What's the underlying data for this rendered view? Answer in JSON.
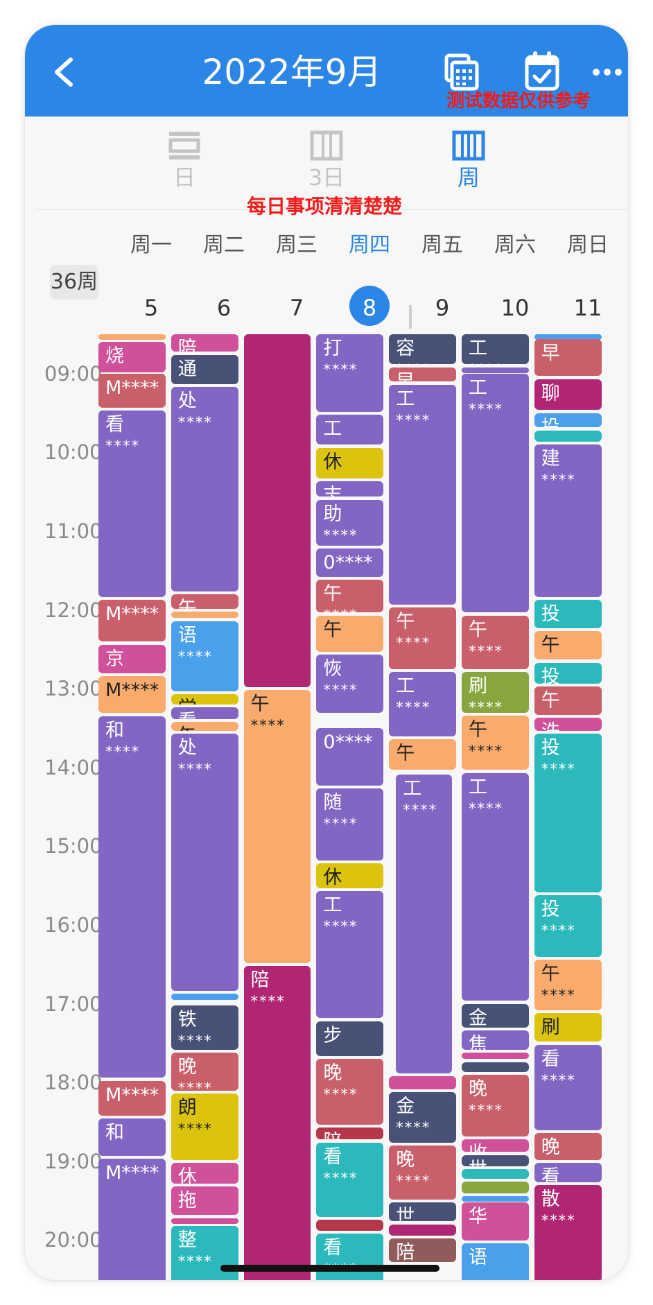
{
  "header": {
    "title": "2022年9月",
    "watermark": "测试数据仅供参考",
    "back_icon": "back-arrow-icon",
    "calendar_grid_icon": "calendar-grid-icon",
    "calendar_check_icon": "calendar-check-icon",
    "more_icon": "more-icon"
  },
  "view_tabs": [
    {
      "label": "日",
      "icon": "day-view-icon",
      "active": false
    },
    {
      "label": "3日",
      "icon": "three-day-view-icon",
      "active": false
    },
    {
      "label": "周",
      "icon": "week-view-icon",
      "active": true
    }
  ],
  "caption": "每日事项清清楚楚",
  "week": {
    "badge": "36周",
    "days": [
      {
        "name": "周一",
        "date": "5"
      },
      {
        "name": "周二",
        "date": "6"
      },
      {
        "name": "周三",
        "date": "7"
      },
      {
        "name": "周四",
        "date": "8",
        "today": true
      },
      {
        "name": "周五",
        "date": "9"
      },
      {
        "name": "周六",
        "date": "10"
      },
      {
        "name": "周日",
        "date": "11"
      }
    ]
  },
  "time_labels": [
    "09:00",
    "10:00",
    "11:00",
    "12:00",
    "13:00",
    "14:00",
    "15:00",
    "16:00",
    "17:00",
    "18:00",
    "19:00",
    "20:00"
  ],
  "colors": {
    "accent": "#2c86e5",
    "purple": "#8366c4",
    "rose": "#c95f6a",
    "pink": "#d0509a",
    "magenta": "#b02673",
    "navy": "#485276",
    "orange": "#f8ab6c",
    "yellow": "#dcc40e",
    "teal": "#2cb9bc",
    "blue": "#4aa0ea",
    "green": "#87a63f",
    "brown": "#8f5b5b",
    "red": "#b4384a"
  },
  "events": [
    {
      "day": 0,
      "start": 8.5,
      "end": 8.58,
      "title": "",
      "detail": "",
      "color": "orange"
    },
    {
      "day": 0,
      "start": 8.6,
      "end": 9.0,
      "title": "烧",
      "detail": "",
      "color": "pink"
    },
    {
      "day": 0,
      "start": 9.0,
      "end": 9.45,
      "title": "M****",
      "detail": "",
      "color": "rose"
    },
    {
      "day": 0,
      "start": 9.47,
      "end": 11.85,
      "title": "看",
      "detail": "****",
      "color": "purple"
    },
    {
      "day": 0,
      "start": 11.87,
      "end": 12.42,
      "title": "M****",
      "detail": "",
      "color": "rose"
    },
    {
      "day": 0,
      "start": 12.44,
      "end": 12.82,
      "title": "京",
      "detail": "",
      "color": "pink"
    },
    {
      "day": 0,
      "start": 12.84,
      "end": 13.32,
      "title": "M****",
      "detail": "",
      "color": "orange"
    },
    {
      "day": 0,
      "start": 13.35,
      "end": 17.95,
      "title": "和",
      "detail": "****",
      "color": "purple"
    },
    {
      "day": 0,
      "start": 17.98,
      "end": 18.44,
      "title": "M****",
      "detail": "",
      "color": "rose"
    },
    {
      "day": 0,
      "start": 18.46,
      "end": 18.95,
      "title": "和",
      "detail": "",
      "color": "purple"
    },
    {
      "day": 0,
      "start": 18.97,
      "end": 20.6,
      "title": "M****",
      "detail": "",
      "color": "purple"
    },
    {
      "day": 1,
      "start": 8.5,
      "end": 8.74,
      "title": "陪",
      "detail": "",
      "color": "pink"
    },
    {
      "day": 1,
      "start": 8.76,
      "end": 9.15,
      "title": "通",
      "detail": "",
      "color": "navy"
    },
    {
      "day": 1,
      "start": 9.17,
      "end": 11.78,
      "title": "处",
      "detail": "****",
      "color": "purple"
    },
    {
      "day": 1,
      "start": 11.8,
      "end": 12.0,
      "title": "午",
      "detail": "",
      "color": "rose"
    },
    {
      "day": 1,
      "start": 12.02,
      "end": 12.12,
      "title": "",
      "detail": "",
      "color": "orange"
    },
    {
      "day": 1,
      "start": 12.14,
      "end": 13.05,
      "title": "语",
      "detail": "****",
      "color": "blue"
    },
    {
      "day": 1,
      "start": 13.07,
      "end": 13.22,
      "title": "学",
      "detail": "",
      "color": "yellow"
    },
    {
      "day": 1,
      "start": 13.24,
      "end": 13.4,
      "title": "看",
      "detail": "",
      "color": "purple"
    },
    {
      "day": 1,
      "start": 13.42,
      "end": 13.55,
      "title": "午",
      "detail": "",
      "color": "orange"
    },
    {
      "day": 1,
      "start": 13.57,
      "end": 16.85,
      "title": "处",
      "detail": "****",
      "color": "purple"
    },
    {
      "day": 1,
      "start": 16.87,
      "end": 16.97,
      "title": "",
      "detail": "",
      "color": "blue"
    },
    {
      "day": 1,
      "start": 17.02,
      "end": 17.6,
      "title": "铁",
      "detail": "****",
      "color": "navy"
    },
    {
      "day": 1,
      "start": 17.62,
      "end": 18.12,
      "title": "晚",
      "detail": "****",
      "color": "rose"
    },
    {
      "day": 1,
      "start": 18.14,
      "end": 19.0,
      "title": "朗",
      "detail": "****",
      "color": "yellow"
    },
    {
      "day": 1,
      "start": 19.02,
      "end": 19.3,
      "title": "休",
      "detail": "",
      "color": "pink"
    },
    {
      "day": 1,
      "start": 19.32,
      "end": 19.7,
      "title": "拖",
      "detail": "",
      "color": "pink"
    },
    {
      "day": 1,
      "start": 19.72,
      "end": 19.8,
      "title": "",
      "detail": "",
      "color": "pink"
    },
    {
      "day": 1,
      "start": 19.82,
      "end": 20.6,
      "title": "整",
      "detail": "****",
      "color": "teal"
    },
    {
      "day": 2,
      "start": 8.5,
      "end": 13.0,
      "title": "",
      "detail": "",
      "color": "magenta"
    },
    {
      "day": 2,
      "start": 13.02,
      "end": 16.5,
      "title": "午",
      "detail": "****",
      "color": "orange"
    },
    {
      "day": 2,
      "start": 16.52,
      "end": 20.6,
      "title": "陪",
      "detail": "****",
      "color": "magenta"
    },
    {
      "day": 3,
      "start": 8.5,
      "end": 9.5,
      "title": "打",
      "detail": "****",
      "color": "purple"
    },
    {
      "day": 3,
      "start": 9.52,
      "end": 9.92,
      "title": "工",
      "detail": "",
      "color": "purple"
    },
    {
      "day": 3,
      "start": 9.94,
      "end": 10.35,
      "title": "休",
      "detail": "",
      "color": "yellow"
    },
    {
      "day": 3,
      "start": 10.37,
      "end": 10.58,
      "title": "志",
      "detail": "",
      "color": "purple"
    },
    {
      "day": 3,
      "start": 10.6,
      "end": 11.2,
      "title": "助",
      "detail": "****",
      "color": "purple"
    },
    {
      "day": 3,
      "start": 11.22,
      "end": 11.6,
      "title": "0****",
      "detail": "",
      "color": "purple"
    },
    {
      "day": 3,
      "start": 11.62,
      "end": 12.05,
      "title": "午",
      "detail": "****",
      "color": "rose"
    },
    {
      "day": 3,
      "start": 12.07,
      "end": 12.55,
      "title": "午",
      "detail": "",
      "color": "orange"
    },
    {
      "day": 3,
      "start": 12.57,
      "end": 13.32,
      "title": "恢",
      "detail": "****",
      "color": "purple"
    },
    {
      "day": 3,
      "start": 13.5,
      "end": 14.25,
      "title": "0****",
      "detail": "",
      "color": "purple"
    },
    {
      "day": 3,
      "start": 14.27,
      "end": 15.2,
      "title": "随",
      "detail": "****",
      "color": "purple"
    },
    {
      "day": 3,
      "start": 15.22,
      "end": 15.55,
      "title": "休",
      "detail": "",
      "color": "yellow"
    },
    {
      "day": 3,
      "start": 15.57,
      "end": 17.2,
      "title": "工",
      "detail": "****",
      "color": "purple"
    },
    {
      "day": 3,
      "start": 17.22,
      "end": 17.68,
      "title": "步",
      "detail": "",
      "color": "navy"
    },
    {
      "day": 3,
      "start": 17.7,
      "end": 18.55,
      "title": "晚",
      "detail": "****",
      "color": "rose"
    },
    {
      "day": 3,
      "start": 18.57,
      "end": 18.74,
      "title": "陪",
      "detail": "",
      "color": "red"
    },
    {
      "day": 3,
      "start": 18.76,
      "end": 19.72,
      "title": "看",
      "detail": "****",
      "color": "teal"
    },
    {
      "day": 3,
      "start": 19.74,
      "end": 19.9,
      "title": "",
      "detail": "",
      "color": "red"
    },
    {
      "day": 3,
      "start": 19.92,
      "end": 20.6,
      "title": "看",
      "detail": "****",
      "color": "teal"
    },
    {
      "day": 4,
      "start": 8.5,
      "end": 8.9,
      "title": "容",
      "detail": "****",
      "color": "navy"
    },
    {
      "day": 4,
      "start": 8.92,
      "end": 9.12,
      "title": "早",
      "detail": "",
      "color": "rose"
    },
    {
      "day": 4,
      "start": 9.14,
      "end": 11.95,
      "title": "工",
      "detail": "****",
      "color": "purple"
    },
    {
      "day": 4,
      "start": 11.97,
      "end": 12.77,
      "title": "午",
      "detail": "****",
      "color": "rose"
    },
    {
      "day": 4,
      "start": 12.79,
      "end": 13.62,
      "title": "工",
      "detail": "****",
      "color": "purple"
    },
    {
      "day": 4,
      "start": 13.64,
      "end": 14.05,
      "title": "午",
      "detail": "",
      "color": "orange"
    },
    {
      "day": 4,
      "start": 14.09,
      "end": 17.9,
      "title": "工",
      "detail": "****",
      "color": "purple",
      "inset": true
    },
    {
      "day": 4,
      "start": 17.92,
      "end": 18.1,
      "title": "",
      "detail": "",
      "color": "pink"
    },
    {
      "day": 4,
      "start": 18.12,
      "end": 18.78,
      "title": "金",
      "detail": "****",
      "color": "navy"
    },
    {
      "day": 4,
      "start": 18.8,
      "end": 19.5,
      "title": "晚",
      "detail": "****",
      "color": "rose"
    },
    {
      "day": 4,
      "start": 19.52,
      "end": 19.78,
      "title": "世",
      "detail": "",
      "color": "navy"
    },
    {
      "day": 4,
      "start": 19.8,
      "end": 19.96,
      "title": "",
      "detail": "",
      "color": "magenta"
    },
    {
      "day": 4,
      "start": 19.98,
      "end": 20.3,
      "title": "陪",
      "detail": "",
      "color": "brown"
    },
    {
      "day": 5,
      "start": 8.5,
      "end": 8.9,
      "title": "工",
      "detail": "****",
      "color": "navy"
    },
    {
      "day": 5,
      "start": 8.92,
      "end": 8.98,
      "title": "",
      "detail": "",
      "color": "purple"
    },
    {
      "day": 5,
      "start": 9.0,
      "end": 12.05,
      "title": "工",
      "detail": "****",
      "color": "purple"
    },
    {
      "day": 5,
      "start": 12.07,
      "end": 12.77,
      "title": "午",
      "detail": "****",
      "color": "rose"
    },
    {
      "day": 5,
      "start": 12.79,
      "end": 13.32,
      "title": "刷",
      "detail": "****",
      "color": "green"
    },
    {
      "day": 5,
      "start": 13.34,
      "end": 14.05,
      "title": "午",
      "detail": "****",
      "color": "orange"
    },
    {
      "day": 5,
      "start": 14.07,
      "end": 16.98,
      "title": "工",
      "detail": "****",
      "color": "purple"
    },
    {
      "day": 5,
      "start": 17.0,
      "end": 17.32,
      "title": "金",
      "detail": "",
      "color": "navy"
    },
    {
      "day": 5,
      "start": 17.34,
      "end": 17.6,
      "title": "焦",
      "detail": "",
      "color": "purple"
    },
    {
      "day": 5,
      "start": 17.62,
      "end": 17.72,
      "title": "",
      "detail": "",
      "color": "pink"
    },
    {
      "day": 5,
      "start": 17.74,
      "end": 17.88,
      "title": "",
      "detail": "",
      "color": "navy"
    },
    {
      "day": 5,
      "start": 17.9,
      "end": 18.7,
      "title": "晚",
      "detail": "****",
      "color": "rose"
    },
    {
      "day": 5,
      "start": 18.72,
      "end": 18.9,
      "title": "收",
      "detail": "",
      "color": "pink"
    },
    {
      "day": 5,
      "start": 18.92,
      "end": 19.08,
      "title": "世",
      "detail": "",
      "color": "navy"
    },
    {
      "day": 5,
      "start": 19.1,
      "end": 19.24,
      "title": "",
      "detail": "",
      "color": "teal"
    },
    {
      "day": 5,
      "start": 19.26,
      "end": 19.42,
      "title": "",
      "detail": "",
      "color": "green"
    },
    {
      "day": 5,
      "start": 19.44,
      "end": 19.5,
      "title": "",
      "detail": "",
      "color": "blue"
    },
    {
      "day": 5,
      "start": 19.52,
      "end": 20.02,
      "title": "华",
      "detail": "",
      "color": "pink"
    },
    {
      "day": 5,
      "start": 20.04,
      "end": 20.6,
      "title": "语",
      "detail": "",
      "color": "blue"
    },
    {
      "day": 6,
      "start": 8.5,
      "end": 8.54,
      "title": "",
      "detail": "",
      "color": "blue"
    },
    {
      "day": 6,
      "start": 8.56,
      "end": 9.05,
      "title": "早",
      "detail": "",
      "color": "rose"
    },
    {
      "day": 6,
      "start": 9.07,
      "end": 9.48,
      "title": "聊",
      "detail": "",
      "color": "magenta"
    },
    {
      "day": 6,
      "start": 9.5,
      "end": 9.7,
      "title": "投",
      "detail": "",
      "color": "blue"
    },
    {
      "day": 6,
      "start": 9.72,
      "end": 9.88,
      "title": "",
      "detail": "",
      "color": "teal"
    },
    {
      "day": 6,
      "start": 9.9,
      "end": 11.85,
      "title": "建",
      "detail": "****",
      "color": "purple"
    },
    {
      "day": 6,
      "start": 11.87,
      "end": 12.25,
      "title": "投",
      "detail": "",
      "color": "teal"
    },
    {
      "day": 6,
      "start": 12.27,
      "end": 12.65,
      "title": "午",
      "detail": "",
      "color": "orange"
    },
    {
      "day": 6,
      "start": 12.67,
      "end": 12.95,
      "title": "投",
      "detail": "",
      "color": "teal"
    },
    {
      "day": 6,
      "start": 12.97,
      "end": 13.35,
      "title": "午",
      "detail": "",
      "color": "rose"
    },
    {
      "day": 6,
      "start": 13.37,
      "end": 13.55,
      "title": "洗",
      "detail": "",
      "color": "pink"
    },
    {
      "day": 6,
      "start": 13.57,
      "end": 15.6,
      "title": "投",
      "detail": "****",
      "color": "teal"
    },
    {
      "day": 6,
      "start": 15.62,
      "end": 16.42,
      "title": "投",
      "detail": "****",
      "color": "teal"
    },
    {
      "day": 6,
      "start": 16.44,
      "end": 17.1,
      "title": "午",
      "detail": "****",
      "color": "orange"
    },
    {
      "day": 6,
      "start": 17.12,
      "end": 17.5,
      "title": "刷",
      "detail": "",
      "color": "yellow"
    },
    {
      "day": 6,
      "start": 17.52,
      "end": 18.62,
      "title": "看",
      "detail": "****",
      "color": "purple"
    },
    {
      "day": 6,
      "start": 18.64,
      "end": 19.0,
      "title": "晚",
      "detail": "",
      "color": "rose"
    },
    {
      "day": 6,
      "start": 19.02,
      "end": 19.28,
      "title": "看",
      "detail": "",
      "color": "purple"
    },
    {
      "day": 6,
      "start": 19.3,
      "end": 20.6,
      "title": "散",
      "detail": "****",
      "color": "magenta"
    }
  ]
}
